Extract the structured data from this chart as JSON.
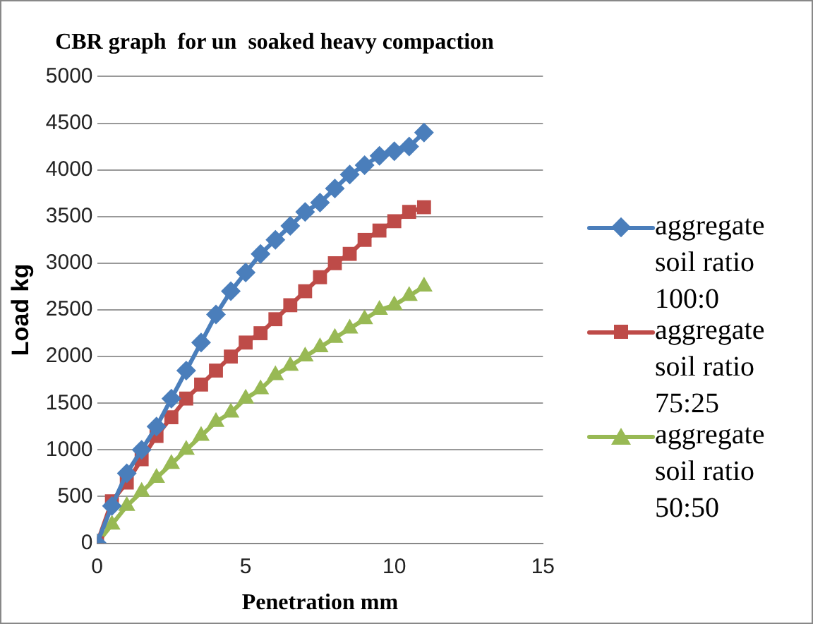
{
  "chart_data": {
    "type": "line",
    "title": "CBR graph  for un  soaked heavy compaction",
    "xlabel": "Penetration mm",
    "ylabel": "Load kg",
    "x": [
      0,
      0.5,
      1,
      1.5,
      2,
      2.5,
      3,
      3.5,
      4,
      4.5,
      5,
      5.5,
      6,
      6.5,
      7,
      7.5,
      8,
      8.5,
      9,
      9.5,
      10,
      10.5,
      11
    ],
    "series": [
      {
        "name": "aggregate soil ratio 100:0",
        "color": "#4a7ebb",
        "marker": "diamond",
        "values": [
          0,
          400,
          750,
          1000,
          1250,
          1550,
          1850,
          2150,
          2450,
          2700,
          2900,
          3100,
          3250,
          3400,
          3550,
          3650,
          3800,
          3950,
          4050,
          4150,
          4200,
          4250,
          4400
        ]
      },
      {
        "name": "aggregate soil ratio 75:25",
        "color": "#be4b48",
        "marker": "square",
        "values": [
          0,
          450,
          650,
          900,
          1150,
          1350,
          1550,
          1700,
          1850,
          2000,
          2150,
          2250,
          2400,
          2550,
          2700,
          2850,
          3000,
          3100,
          3250,
          3350,
          3450,
          3550,
          3600
        ]
      },
      {
        "name": "aggregate soil ratio 50:50",
        "color": "#98b954",
        "marker": "triangle",
        "values": [
          0,
          200,
          400,
          550,
          700,
          850,
          1000,
          1150,
          1300,
          1400,
          1550,
          1650,
          1800,
          1900,
          2000,
          2100,
          2200,
          2300,
          2400,
          2500,
          2550,
          2650,
          2750
        ]
      }
    ],
    "xlim": [
      0,
      15
    ],
    "xticks": [
      0,
      5,
      10,
      15
    ],
    "ylim": [
      0,
      5000
    ],
    "yticks": [
      0,
      500,
      1000,
      1500,
      2000,
      2500,
      3000,
      3500,
      4000,
      4500,
      5000
    ],
    "grid": "y",
    "legend": "right"
  }
}
